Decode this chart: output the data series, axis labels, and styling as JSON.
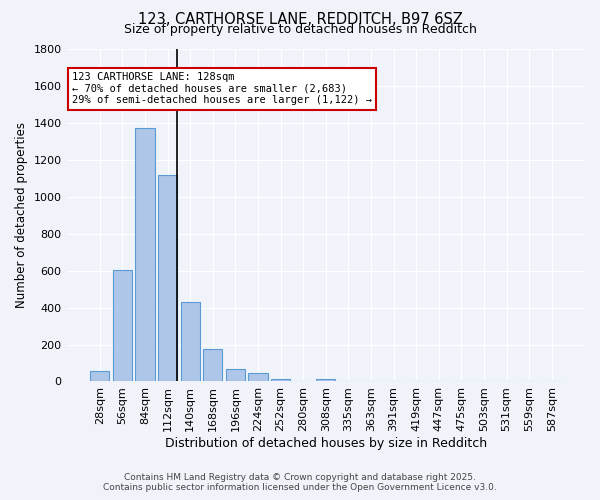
{
  "title_line1": "123, CARTHORSE LANE, REDDITCH, B97 6SZ",
  "title_line2": "Size of property relative to detached houses in Redditch",
  "xlabel": "Distribution of detached houses by size in Redditch",
  "ylabel": "Number of detached properties",
  "categories": [
    "28sqm",
    "56sqm",
    "84sqm",
    "112sqm",
    "140sqm",
    "168sqm",
    "196sqm",
    "224sqm",
    "252sqm",
    "280sqm",
    "308sqm",
    "335sqm",
    "363sqm",
    "391sqm",
    "419sqm",
    "447sqm",
    "475sqm",
    "503sqm",
    "531sqm",
    "559sqm",
    "587sqm"
  ],
  "values": [
    55,
    605,
    1370,
    1120,
    430,
    175,
    65,
    45,
    15,
    0,
    15,
    0,
    0,
    0,
    0,
    0,
    0,
    0,
    0,
    0,
    0
  ],
  "bar_color": "#aec6e8",
  "bar_edge_color": "#5b9bd5",
  "vline_x": 4,
  "vline_color": "black",
  "annotation_text": "123 CARTHORSE LANE: 128sqm\n← 70% of detached houses are smaller (2,683)\n29% of semi-detached houses are larger (1,122) →",
  "annotation_box_color": "#ffffff",
  "annotation_box_edge_color": "#cc0000",
  "ylim": [
    0,
    1800
  ],
  "yticks": [
    0,
    200,
    400,
    600,
    800,
    1000,
    1200,
    1400,
    1600,
    1800
  ],
  "bg_color": "#f0f4fa",
  "grid_color": "#ffffff",
  "footer_line1": "Contains HM Land Registry data © Crown copyright and database right 2025.",
  "footer_line2": "Contains public sector information licensed under the Open Government Licence v3.0."
}
